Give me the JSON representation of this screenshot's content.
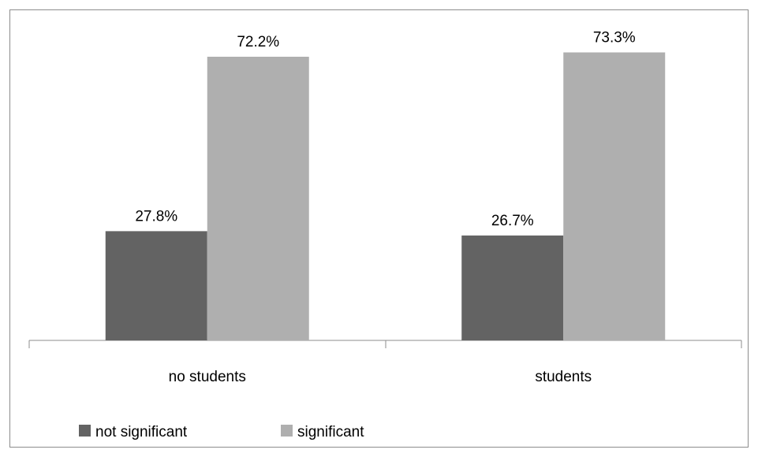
{
  "chart_data": {
    "type": "bar",
    "categories": [
      "no students",
      "students"
    ],
    "series": [
      {
        "name": "not significant",
        "values": [
          27.8,
          26.7
        ],
        "labels": [
          "27.8%",
          "26.7%"
        ],
        "color": "#636363"
      },
      {
        "name": "significant",
        "values": [
          72.2,
          73.3
        ],
        "labels": [
          "72.2%",
          "73.3%"
        ],
        "color": "#afafaf"
      }
    ],
    "title": "",
    "xlabel": "",
    "ylabel": "",
    "ylim": [
      0,
      80
    ],
    "grid": false,
    "legend": "bottom-left",
    "axis_color": "#8c8c8c"
  }
}
